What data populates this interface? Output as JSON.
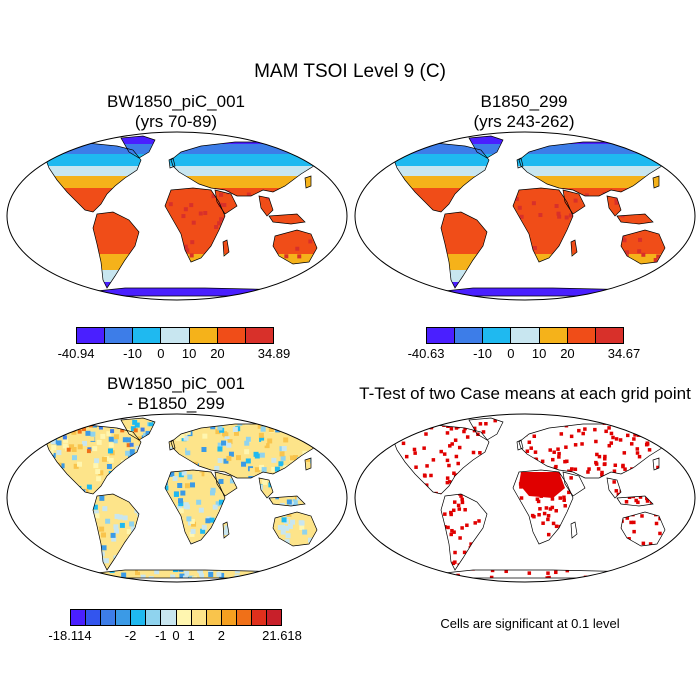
{
  "title": "MAM TSOI Level 9 (C)",
  "panels": [
    {
      "name": "map-bw1850",
      "title": [
        "BW1850_piC_001",
        "(yrs 70-89)"
      ],
      "kind": "absolute",
      "colorbar": {
        "colors": [
          "#4a1fff",
          "#3d7de8",
          "#1fb9f0",
          "#c8e6f0",
          "#f5b21a",
          "#f04d18",
          "#d8302a"
        ],
        "labels": [
          "-40.94",
          "-10",
          "0",
          "10",
          "20",
          "34.89"
        ]
      }
    },
    {
      "name": "map-b1850",
      "title": [
        "B1850_299",
        "(yrs 243-262)"
      ],
      "kind": "absolute",
      "colorbar": {
        "colors": [
          "#4a1fff",
          "#3d7de8",
          "#1fb9f0",
          "#c8e6f0",
          "#f5b21a",
          "#f04d18",
          "#d8302a"
        ],
        "labels": [
          "-40.63",
          "-10",
          "0",
          "10",
          "20",
          "34.67"
        ]
      }
    },
    {
      "name": "map-difference",
      "title": [
        "BW1850_piC_001",
        "- B1850_299"
      ],
      "kind": "difference",
      "colorbar": {
        "colors": [
          "#4a1fff",
          "#3355ee",
          "#3d7de8",
          "#3b9ae6",
          "#1fb9f0",
          "#8fd3ee",
          "#c8e6f0",
          "#fff6b0",
          "#fde48a",
          "#f9c44c",
          "#f5a020",
          "#f07018",
          "#e0301c",
          "#c8202a"
        ],
        "labels": [
          "-18.114",
          "-2",
          "-1",
          "0",
          "1",
          "2",
          "21.618"
        ]
      }
    },
    {
      "name": "map-ttest",
      "title": [
        "T-Test of two Case means at each grid point"
      ],
      "kind": "ttest",
      "note": "Cells are significant at 0.1 level"
    }
  ],
  "colors": {
    "land_outline": "#000000",
    "significant": "#e00000"
  }
}
